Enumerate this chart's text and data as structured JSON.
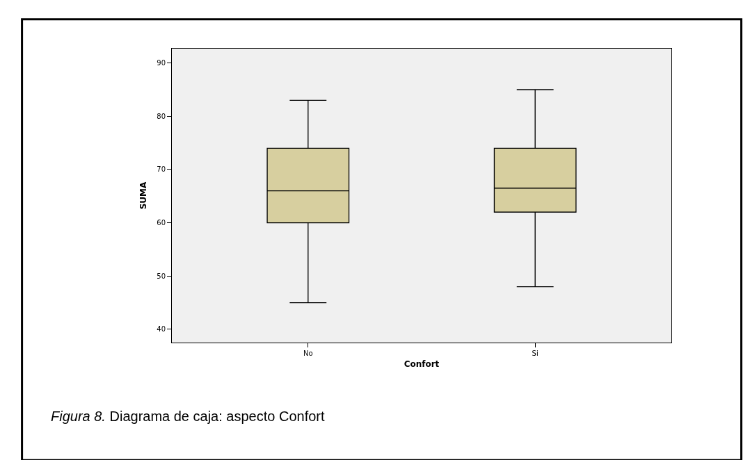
{
  "chart_data": {
    "type": "box",
    "xlabel": "Confort",
    "ylabel": "SUMA",
    "categories": [
      "No",
      "Si"
    ],
    "boxes": [
      {
        "low": 45,
        "q1": 60,
        "median": 66,
        "q3": 74,
        "high": 83
      },
      {
        "low": 48,
        "q1": 62,
        "median": 66.5,
        "q3": 74,
        "high": 85
      }
    ],
    "color": "#d7cf9f",
    "ylim": [
      37.5,
      92.7
    ],
    "yticks": [
      40,
      50,
      60,
      70,
      80,
      90
    ],
    "grid": false,
    "legend": false,
    "annotations": [
      "Figura 8.",
      "Diagrama de caja: aspecto Confort"
    ]
  }
}
